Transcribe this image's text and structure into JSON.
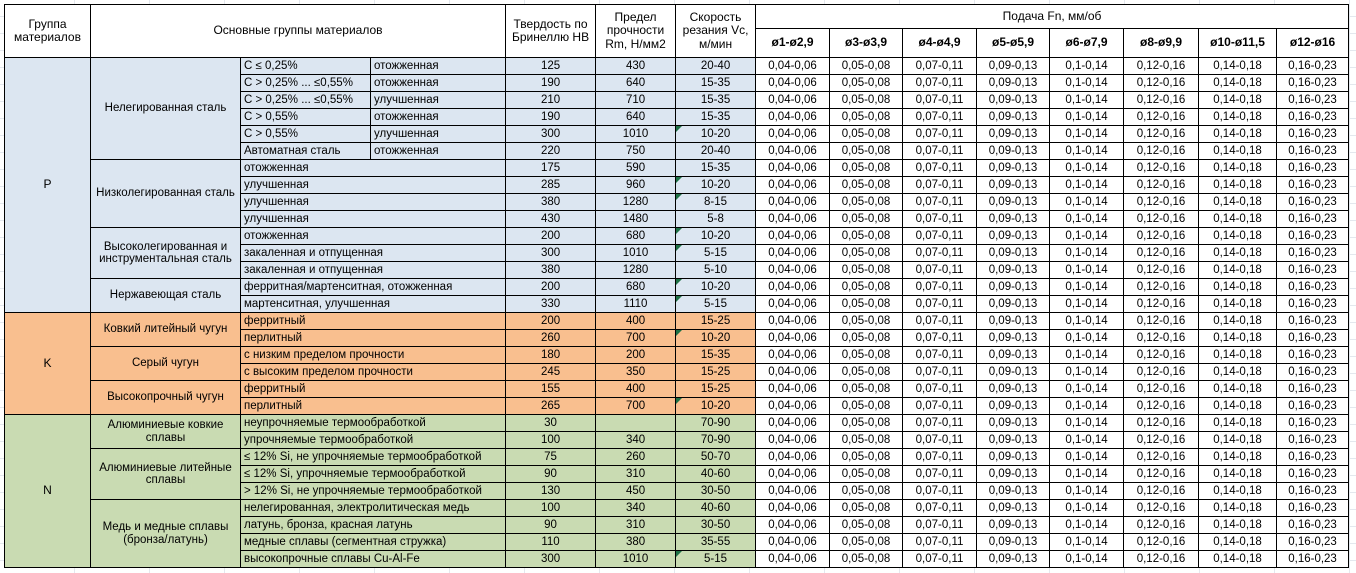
{
  "header": {
    "group_col": "Группа материалов",
    "main_groups_col": "Основные группы материалов",
    "hardness_col": "Твердость по Бринеллю HB",
    "strength_col": "Предел прочности Rm, Н/мм2",
    "speed_col": "Скорость резания Vc, м/мин",
    "feed_col": "Подача Fn, мм/об",
    "feed_subcols": [
      "ø1-ø2,9",
      "ø3-ø3,9",
      "ø4-ø4,9",
      "ø5-ø5,9",
      "ø6-ø7,9",
      "ø8-ø9,9",
      "ø10-ø11,5",
      "ø12-ø16"
    ]
  },
  "feed_values": [
    "0,04-0,06",
    "0,05-0,08",
    "0,07-0,11",
    "0,09-0,13",
    "0,1-0,14",
    "0,12-0,16",
    "0,14-0,18",
    "0,16-0,23"
  ],
  "colors": {
    "group_p_bg": "#dce6f1",
    "group_k_bg": "#f9bf8f",
    "group_n_bg": "#c9dbb2",
    "flag_triangle": "#1e7145",
    "grid_border": "#000000",
    "header_bg": "#ffffff"
  },
  "groups": [
    {
      "letter": "P",
      "subgroups": [
        {
          "name": "Нелегированная сталь",
          "rows": [
            {
              "composition": "C ≤ 0,25%",
              "state": "отожженная",
              "hb": "125",
              "rm": "430",
              "vc": "20-40",
              "flag": false
            },
            {
              "composition": "C > 0,25% ... ≤0,55%",
              "state": "отожженная",
              "hb": "190",
              "rm": "640",
              "vc": "15-35",
              "flag": false
            },
            {
              "composition": "C > 0,25% ... ≤0,55%",
              "state": "улучшенная",
              "hb": "210",
              "rm": "710",
              "vc": "15-35",
              "flag": false
            },
            {
              "composition": "C > 0,55%",
              "state": "отожженная",
              "hb": "190",
              "rm": "640",
              "vc": "15-35",
              "flag": false
            },
            {
              "composition": "C > 0,55%",
              "state": "улучшенная",
              "hb": "300",
              "rm": "1010",
              "vc": "10-20",
              "flag": true
            },
            {
              "composition": "Автоматная сталь",
              "state": "отожженная",
              "hb": "220",
              "rm": "750",
              "vc": "20-40",
              "flag": false
            }
          ]
        },
        {
          "name": "Низколегированная сталь",
          "rows": [
            {
              "state": "отожженная",
              "hb": "175",
              "rm": "590",
              "vc": "15-35",
              "flag": false
            },
            {
              "state": "улучшенная",
              "hb": "285",
              "rm": "960",
              "vc": "10-20",
              "flag": true
            },
            {
              "state": "улучшенная",
              "hb": "380",
              "rm": "1280",
              "vc": "8-15",
              "flag": true
            },
            {
              "state": "улучшенная",
              "hb": "430",
              "rm": "1480",
              "vc": "5-8",
              "flag": false
            }
          ]
        },
        {
          "name": "Высоколегированная и инструментальная сталь",
          "rows": [
            {
              "state": "отожженная",
              "hb": "200",
              "rm": "680",
              "vc": "10-20",
              "flag": true
            },
            {
              "state": "закаленная и отпущенная",
              "hb": "300",
              "rm": "1010",
              "vc": "5-15",
              "flag": true
            },
            {
              "state": "закаленная и отпущенная",
              "hb": "380",
              "rm": "1280",
              "vc": "5-10",
              "flag": false
            }
          ]
        },
        {
          "name": "Нержавеющая сталь",
          "rows": [
            {
              "state": "ферритная/мартенситная, отожженная",
              "hb": "200",
              "rm": "680",
              "vc": "10-20",
              "flag": true
            },
            {
              "state": "мартенситная, улучшенная",
              "hb": "330",
              "rm": "1110",
              "vc": "5-15",
              "flag": true
            }
          ]
        }
      ]
    },
    {
      "letter": "K",
      "subgroups": [
        {
          "name": "Ковкий литейный чугун",
          "rows": [
            {
              "state": "ферритный",
              "hb": "200",
              "rm": "400",
              "vc": "15-25",
              "flag": false
            },
            {
              "state": "перлитный",
              "hb": "260",
              "rm": "700",
              "vc": "10-20",
              "flag": true
            }
          ]
        },
        {
          "name": "Серый чугун",
          "rows": [
            {
              "state": "с низким пределом прочности",
              "hb": "180",
              "rm": "200",
              "vc": "15-35",
              "flag": false
            },
            {
              "state": "с высоким пределом прочности",
              "hb": "245",
              "rm": "350",
              "vc": "15-25",
              "flag": false
            }
          ]
        },
        {
          "name": "Высокопрочный чугун",
          "rows": [
            {
              "state": "ферритный",
              "hb": "155",
              "rm": "400",
              "vc": "15-25",
              "flag": false
            },
            {
              "state": "перлитный",
              "hb": "265",
              "rm": "700",
              "vc": "10-20",
              "flag": true
            }
          ]
        }
      ]
    },
    {
      "letter": "N",
      "subgroups": [
        {
          "name": "Алюминиевые ковкие сплавы",
          "rows": [
            {
              "state": "неупрочняемые термообработкой",
              "hb": "30",
              "rm": "",
              "vc": "70-90",
              "flag": false
            },
            {
              "state": "упрочняемые термообработкой",
              "hb": "100",
              "rm": "340",
              "vc": "70-90",
              "flag": false
            }
          ]
        },
        {
          "name": "Алюминиевые литейные сплавы",
          "rows": [
            {
              "state": "≤ 12% Si, не упрочняемые термообработкой",
              "hb": "75",
              "rm": "260",
              "vc": "50-70",
              "flag": false
            },
            {
              "state": "≤ 12% Si, упрочняемые термообработкой",
              "hb": "90",
              "rm": "310",
              "vc": "40-60",
              "flag": false
            },
            {
              "state": "> 12% Si, не упрочняемые термообработкой",
              "hb": "130",
              "rm": "450",
              "vc": "30-50",
              "flag": false
            }
          ]
        },
        {
          "name": "Медь и медные сплавы (бронза/латунь)",
          "rows": [
            {
              "state": "нелегированная, электролитическая медь",
              "hb": "100",
              "rm": "340",
              "vc": "40-60",
              "flag": false
            },
            {
              "state": "латунь, бронза, красная латунь",
              "hb": "90",
              "rm": "310",
              "vc": "30-50",
              "flag": false
            },
            {
              "state": "медные сплавы (сегментная стружка)",
              "hb": "110",
              "rm": "380",
              "vc": "35-55",
              "flag": false
            },
            {
              "state": "высокопрочные сплавы Cu-Al-Fe",
              "hb": "300",
              "rm": "1010",
              "vc": "5-15",
              "flag": true
            }
          ]
        }
      ]
    }
  ]
}
